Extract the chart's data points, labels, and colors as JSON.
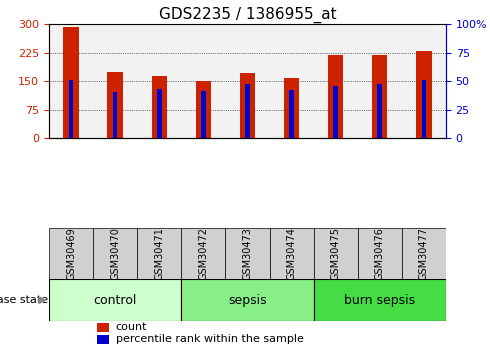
{
  "title": "GDS2235 / 1386955_at",
  "samples": [
    "GSM30469",
    "GSM30470",
    "GSM30471",
    "GSM30472",
    "GSM30473",
    "GSM30474",
    "GSM30475",
    "GSM30476",
    "GSM30477"
  ],
  "counts": [
    293,
    175,
    163,
    150,
    172,
    157,
    218,
    219,
    230
  ],
  "percentile_ranks": [
    51,
    40,
    43,
    41,
    47,
    42,
    46,
    47,
    51
  ],
  "groups": [
    {
      "label": "control",
      "samples": [
        0,
        1,
        2
      ],
      "color": "#ccffcc"
    },
    {
      "label": "sepsis",
      "samples": [
        3,
        4,
        5
      ],
      "color": "#88ee88"
    },
    {
      "label": "burn sepsis",
      "samples": [
        6,
        7,
        8
      ],
      "color": "#44dd44"
    }
  ],
  "bar_color": "#cc2200",
  "percentile_color": "#0000cc",
  "bar_width": 0.35,
  "ylim_left": [
    0,
    300
  ],
  "ylim_right": [
    0,
    100
  ],
  "yticks_left": [
    0,
    75,
    150,
    225,
    300
  ],
  "yticks_right": [
    0,
    25,
    50,
    75,
    100
  ],
  "grid_color": "#000000",
  "plot_bg_color": "#f2f2f2",
  "tick_label_color_left": "#cc2200",
  "tick_label_color_right": "#0000cc",
  "disease_state_label": "disease state",
  "legend_count_label": "count",
  "legend_percentile_label": "percentile rank within the sample",
  "title_fontsize": 11,
  "axis_fontsize": 8,
  "legend_fontsize": 8,
  "sample_fontsize": 7,
  "group_label_fontsize": 9
}
